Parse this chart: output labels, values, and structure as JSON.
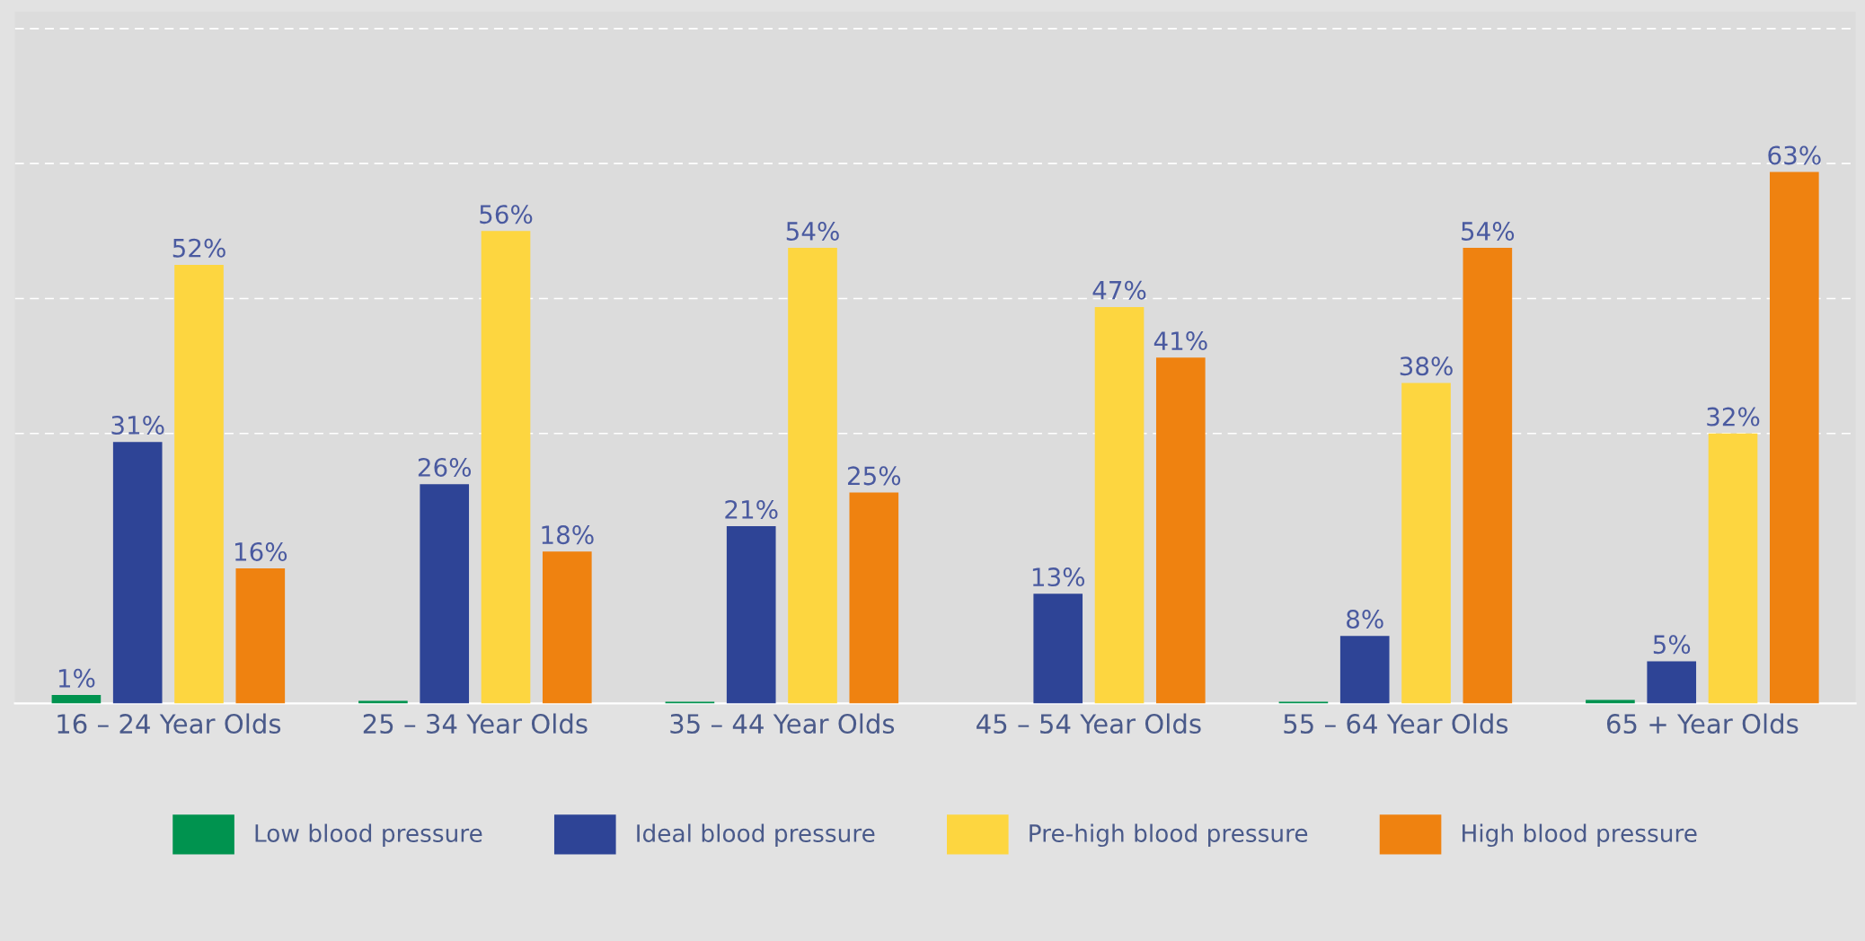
{
  "chart_data": {
    "type": "bar",
    "categories": [
      "16 – 24 Year Olds",
      "25 – 34 Year Olds",
      "35 – 44 Year Olds",
      "45 – 54 Year Olds",
      "55 – 64 Year Olds",
      "65 + Year Olds"
    ],
    "series": [
      {
        "name": "Low blood pressure",
        "color": "#00934f",
        "values": [
          1,
          0.3,
          0.2,
          null,
          0.2,
          0.4
        ],
        "value_labels": [
          "1%",
          null,
          null,
          null,
          null,
          null
        ]
      },
      {
        "name": "Ideal blood pressure",
        "color": "#2e4496",
        "values": [
          31,
          26,
          21,
          13,
          8,
          5
        ],
        "value_labels": [
          "31%",
          "26%",
          "21%",
          "13%",
          "8%",
          "5%"
        ]
      },
      {
        "name": "Pre-high blood pressure",
        "color": "#fdd640",
        "values": [
          52,
          56,
          54,
          47,
          38,
          32
        ],
        "value_labels": [
          "52%",
          "56%",
          "54%",
          "47%",
          "38%",
          "32%"
        ]
      },
      {
        "name": "High blood pressure",
        "color": "#ef8210",
        "values": [
          16,
          18,
          25,
          41,
          54,
          63
        ],
        "value_labels": [
          "16%",
          "18%",
          "25%",
          "41%",
          "54%",
          "63%"
        ]
      }
    ],
    "ylim": [
      0,
      82
    ],
    "yticks": [
      {
        "value": 32,
        "label": null
      },
      {
        "value": 48,
        "label": null
      },
      {
        "value": 64,
        "label": null
      },
      {
        "value": 80,
        "label": null
      }
    ],
    "grid": "y",
    "legend": "bottom",
    "tick_labels": "x"
  }
}
